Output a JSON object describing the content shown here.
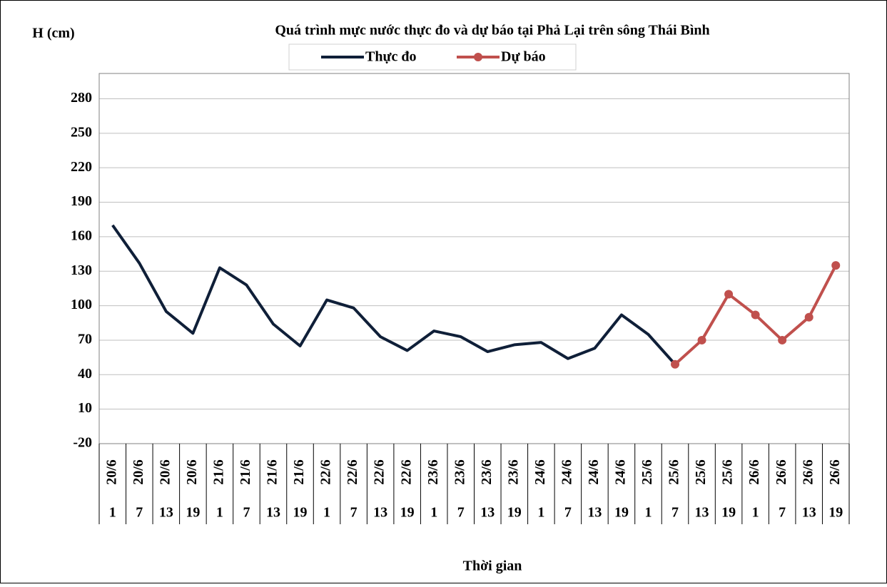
{
  "chart_data": {
    "type": "line",
    "title": "Quá trình mực nước thực đo và dự báo tại Phả Lại trên sông Thái Bình",
    "y_label": "H (cm)",
    "x_label": "Thời gian",
    "categories": [
      "20/6",
      "20/6",
      "20/6",
      "20/6",
      "21/6",
      "21/6",
      "21/6",
      "21/6",
      "22/6",
      "22/6",
      "22/6",
      "22/6",
      "23/6",
      "23/6",
      "23/6",
      "23/6",
      "24/6",
      "24/6",
      "24/6",
      "24/6",
      "25/6",
      "25/6",
      "25/6",
      "25/6",
      "26/6",
      "26/6",
      "26/6",
      "26/6"
    ],
    "hours": [
      1,
      7,
      13,
      19,
      1,
      7,
      13,
      19,
      1,
      7,
      13,
      19,
      1,
      7,
      13,
      19,
      1,
      7,
      13,
      19,
      1,
      7,
      13,
      19,
      1,
      7,
      13,
      19
    ],
    "series": [
      {
        "name": "Thực đo",
        "color": "#0f1f38",
        "markers": false,
        "values": [
          170,
          137,
          95,
          76,
          133,
          118,
          84,
          65,
          105,
          98,
          73,
          61,
          78,
          73,
          60,
          66,
          68,
          54,
          63,
          92,
          75,
          49,
          null,
          null,
          null,
          null,
          null,
          null
        ]
      },
      {
        "name": "Dự báo",
        "color": "#c0504d",
        "markers": true,
        "values": [
          null,
          null,
          null,
          null,
          null,
          null,
          null,
          null,
          null,
          null,
          null,
          null,
          null,
          null,
          null,
          null,
          null,
          null,
          null,
          null,
          null,
          49,
          70,
          110,
          92,
          70,
          90,
          135
        ]
      }
    ],
    "ylim": [
      -20,
      302
    ],
    "yticks": [
      -20,
      10,
      40,
      70,
      100,
      130,
      160,
      190,
      220,
      250,
      280
    ],
    "grid": true
  }
}
